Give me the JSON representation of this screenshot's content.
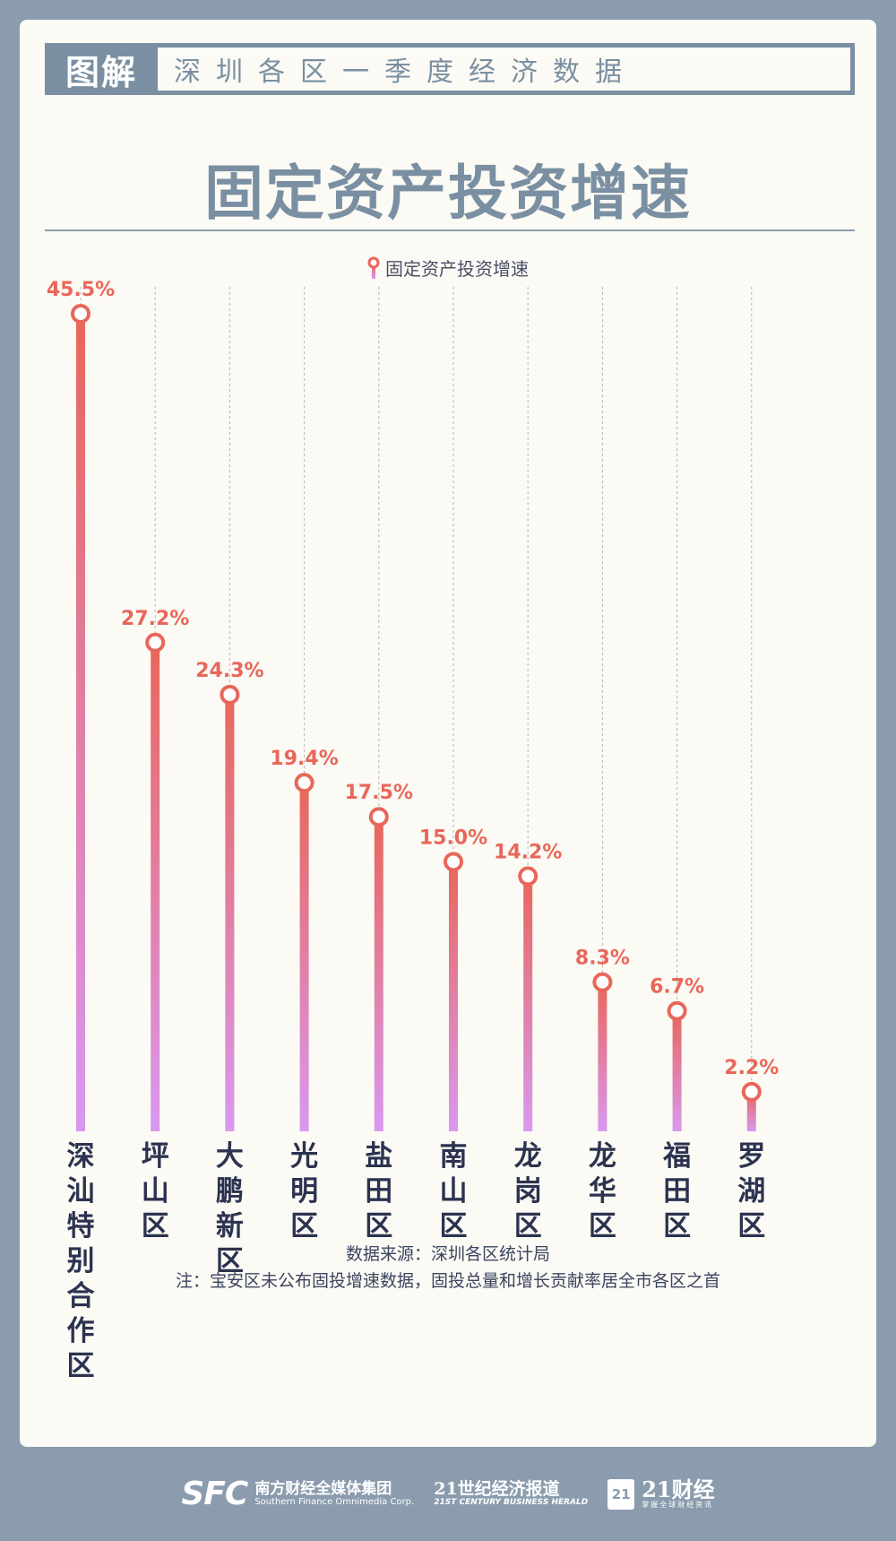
{
  "header": {
    "tag": "图解",
    "subtitle": "深圳各区一季度经济数据"
  },
  "chart_data": {
    "type": "lollipop",
    "title": "固定资产投资增速",
    "legend": {
      "label": "固定资产投资增速",
      "position": "top-center"
    },
    "categories": [
      "深汕特别合作区",
      "坪山区",
      "大鹏新区",
      "光明区",
      "盐田区",
      "南山区",
      "龙岗区",
      "龙华区",
      "福田区",
      "罗湖区"
    ],
    "values": [
      45.5,
      27.2,
      24.3,
      19.4,
      17.5,
      15.0,
      14.2,
      8.3,
      6.7,
      2.2
    ],
    "value_labels": [
      "45.5%",
      "27.2%",
      "24.3%",
      "19.4%",
      "17.5%",
      "15.0%",
      "14.2%",
      "8.3%",
      "6.7%",
      "2.2%"
    ],
    "unit": "%",
    "ylim": [
      0,
      50
    ],
    "grid": "vertical-dashed",
    "colors": {
      "stem_top": "#e8675a",
      "stem_bottom": "#d998f0",
      "marker_stroke": "#e8675a",
      "marker_fill": "#ffffff",
      "value_label": "#e8675a",
      "category_label": "#2c3350",
      "grid": "#b5b5b5"
    }
  },
  "notes": {
    "source": "数据来源：深圳各区统计局",
    "remark": "注：宝安区未公布固投增速数据，固投总量和增长贡献率居全市各区之首"
  },
  "footer": {
    "sfc_logo": "SFC",
    "sfc_cn": "南方财经全媒体集团",
    "sfc_en": "Southern Finance Omnimedia Corp.",
    "herald_cn": "21世纪经济报道",
    "herald_en": "21ST CENTURY BUSINESS HERALD",
    "cj_logo": "21",
    "cj_cn": "21财经",
    "cj_sub": "掌握全球财经资讯"
  },
  "colors": {
    "background": "#8a9cad",
    "card": "#fbfaf4",
    "header": "#7a8fa2"
  }
}
